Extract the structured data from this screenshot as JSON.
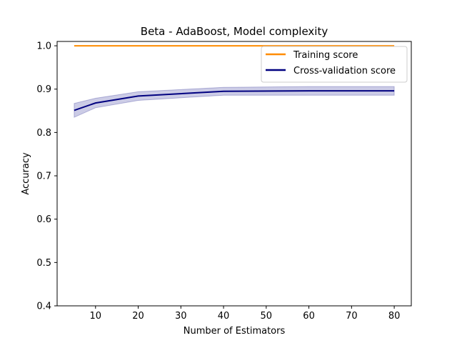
{
  "chart_data": {
    "type": "line",
    "title": "Beta - AdaBoost, Model complexity",
    "xlabel": "Number of Estimators",
    "ylabel": "Accuracy",
    "xlim": [
      1,
      84
    ],
    "ylim": [
      0.4,
      1.01
    ],
    "xticks": [
      10,
      20,
      30,
      40,
      50,
      60,
      70,
      80
    ],
    "xtick_labels": [
      "10",
      "20",
      "30",
      "40",
      "50",
      "60",
      "70",
      "80"
    ],
    "yticks": [
      0.4,
      0.5,
      0.6,
      0.7,
      0.8,
      0.9,
      1.0
    ],
    "ytick_labels": [
      "0.4",
      "0.5",
      "0.6",
      "0.7",
      "0.8",
      "0.9",
      "1.0"
    ],
    "x": [
      5,
      10,
      20,
      40,
      60,
      80
    ],
    "series": [
      {
        "name": "Training score",
        "color": "#ff8c00",
        "values": [
          1.0,
          1.0,
          1.0,
          1.0,
          1.0,
          1.0
        ]
      },
      {
        "name": "Cross-validation score",
        "color": "#000080",
        "band_color": "#000080",
        "values": [
          0.851,
          0.868,
          0.884,
          0.895,
          0.896,
          0.896
        ],
        "lower": [
          0.835,
          0.857,
          0.874,
          0.886,
          0.886,
          0.886
        ],
        "upper": [
          0.867,
          0.879,
          0.894,
          0.904,
          0.906,
          0.906
        ]
      }
    ],
    "legend": {
      "position": "top-right"
    },
    "grid": false
  }
}
